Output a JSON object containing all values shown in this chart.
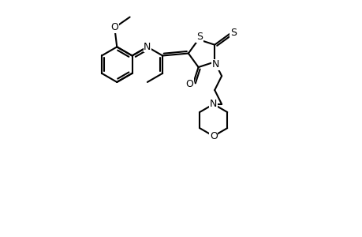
{
  "bg": "#ffffff",
  "lc": "#000000",
  "lw": 1.5,
  "fs": 9.0,
  "figsize": [
    4.6,
    3.0
  ],
  "dpi": 100,
  "xlim": [
    0,
    9.2
  ],
  "ylim": [
    -2.5,
    7.5
  ]
}
